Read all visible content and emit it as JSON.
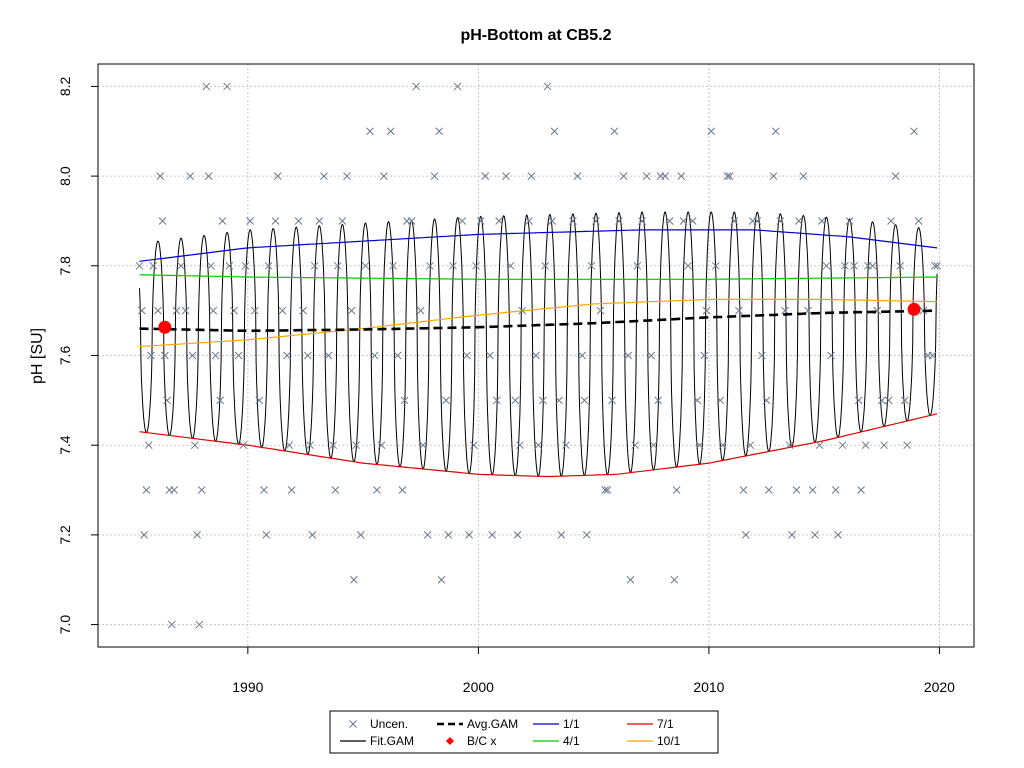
{
  "chart_data": {
    "type": "scatter",
    "title": "pH-Bottom at CB5.2",
    "xlabel": "",
    "ylabel": "pH [SU]",
    "xlim": [
      1983.5,
      2021.5
    ],
    "ylim": [
      6.95,
      8.25
    ],
    "xticks": [
      1990,
      2000,
      2010,
      2020
    ],
    "yticks": [
      7.0,
      7.2,
      7.4,
      7.6,
      7.8,
      8.0,
      8.2
    ],
    "grid": true,
    "legend_position": "bottom",
    "colors": {
      "points": "#6c7a8c",
      "fit_gam": "#000000",
      "avg_gam": "#000000",
      "bc": "#ff0000",
      "jan1": "#0000cd",
      "apr1": "#00c800",
      "jul1": "#e00000",
      "oct1": "#ffa500",
      "grid": "#c8c8c8"
    },
    "legend": [
      {
        "label": "Uncen.",
        "kind": "x",
        "color": "#6c7a8c"
      },
      {
        "label": "Avg.GAM",
        "kind": "dash",
        "color": "#000000"
      },
      {
        "label": "1/1",
        "kind": "line",
        "color": "#0000cd"
      },
      {
        "label": "7/1",
        "kind": "line",
        "color": "#e00000"
      },
      {
        "label": "Fit.GAM",
        "kind": "line",
        "color": "#000000"
      },
      {
        "label": "B/C x",
        "kind": "diamond",
        "color": "#ff0000"
      },
      {
        "label": "4/1",
        "kind": "line",
        "color": "#00c800"
      },
      {
        "label": "10/1",
        "kind": "line",
        "color": "#ffa500"
      }
    ],
    "observations": [
      [
        1985.3,
        7.8
      ],
      [
        1985.4,
        7.7
      ],
      [
        1985.5,
        7.2
      ],
      [
        1985.6,
        7.3
      ],
      [
        1985.7,
        7.4
      ],
      [
        1985.8,
        7.6
      ],
      [
        1985.9,
        7.8
      ],
      [
        1986.1,
        7.7
      ],
      [
        1986.2,
        8.0
      ],
      [
        1986.3,
        7.9
      ],
      [
        1986.4,
        7.6
      ],
      [
        1986.5,
        7.5
      ],
      [
        1986.6,
        7.3
      ],
      [
        1986.7,
        7.0
      ],
      [
        1986.8,
        7.3
      ],
      [
        1986.9,
        7.7
      ],
      [
        1987.1,
        7.8
      ],
      [
        1987.3,
        7.7
      ],
      [
        1987.5,
        8.0
      ],
      [
        1987.6,
        7.6
      ],
      [
        1987.7,
        7.4
      ],
      [
        1987.8,
        7.2
      ],
      [
        1987.9,
        7.0
      ],
      [
        1988.0,
        7.3
      ],
      [
        1988.2,
        8.2
      ],
      [
        1988.3,
        8.0
      ],
      [
        1988.4,
        7.8
      ],
      [
        1988.5,
        7.7
      ],
      [
        1988.6,
        7.6
      ],
      [
        1988.8,
        7.5
      ],
      [
        1988.9,
        7.9
      ],
      [
        1989.1,
        8.2
      ],
      [
        1989.2,
        7.8
      ],
      [
        1989.4,
        7.7
      ],
      [
        1989.6,
        7.6
      ],
      [
        1989.8,
        7.4
      ],
      [
        1989.9,
        7.8
      ],
      [
        1990.1,
        7.9
      ],
      [
        1990.3,
        7.7
      ],
      [
        1990.5,
        7.5
      ],
      [
        1990.7,
        7.3
      ],
      [
        1990.8,
        7.2
      ],
      [
        1990.9,
        7.8
      ],
      [
        1991.2,
        7.9
      ],
      [
        1991.3,
        8.0
      ],
      [
        1991.5,
        7.7
      ],
      [
        1991.7,
        7.6
      ],
      [
        1991.8,
        7.4
      ],
      [
        1991.9,
        7.3
      ],
      [
        1992.2,
        7.9
      ],
      [
        1992.4,
        7.7
      ],
      [
        1992.6,
        7.6
      ],
      [
        1992.7,
        7.4
      ],
      [
        1992.8,
        7.2
      ],
      [
        1992.9,
        7.8
      ],
      [
        1993.1,
        7.9
      ],
      [
        1993.3,
        8.0
      ],
      [
        1993.5,
        7.6
      ],
      [
        1993.7,
        7.4
      ],
      [
        1993.8,
        7.3
      ],
      [
        1993.9,
        7.8
      ],
      [
        1994.1,
        7.9
      ],
      [
        1994.3,
        8.0
      ],
      [
        1994.5,
        7.7
      ],
      [
        1994.6,
        7.1
      ],
      [
        1994.7,
        7.4
      ],
      [
        1994.9,
        7.2
      ],
      [
        1995.1,
        7.8
      ],
      [
        1995.3,
        8.1
      ],
      [
        1995.5,
        7.6
      ],
      [
        1995.6,
        7.3
      ],
      [
        1995.8,
        7.4
      ],
      [
        1995.9,
        8.0
      ],
      [
        1996.2,
        8.1
      ],
      [
        1996.3,
        7.8
      ],
      [
        1996.5,
        7.6
      ],
      [
        1996.7,
        7.3
      ],
      [
        1996.8,
        7.5
      ],
      [
        1996.9,
        7.9
      ],
      [
        1997.1,
        7.9
      ],
      [
        1997.3,
        8.2
      ],
      [
        1997.5,
        7.7
      ],
      [
        1997.6,
        7.4
      ],
      [
        1997.8,
        7.2
      ],
      [
        1997.9,
        7.8
      ],
      [
        1998.1,
        8.0
      ],
      [
        1998.3,
        8.1
      ],
      [
        1998.4,
        7.1
      ],
      [
        1998.6,
        7.5
      ],
      [
        1998.7,
        7.2
      ],
      [
        1998.9,
        7.8
      ],
      [
        1999.1,
        8.2
      ],
      [
        1999.3,
        7.9
      ],
      [
        1999.5,
        7.6
      ],
      [
        1999.6,
        7.2
      ],
      [
        1999.8,
        7.4
      ],
      [
        1999.9,
        7.8
      ],
      [
        2000.1,
        7.9
      ],
      [
        2000.3,
        8.0
      ],
      [
        2000.5,
        7.6
      ],
      [
        2000.6,
        7.2
      ],
      [
        2000.8,
        7.5
      ],
      [
        2000.9,
        7.9
      ],
      [
        2001.2,
        8.0
      ],
      [
        2001.4,
        7.8
      ],
      [
        2001.6,
        7.5
      ],
      [
        2001.7,
        7.2
      ],
      [
        2001.8,
        7.4
      ],
      [
        2001.9,
        7.7
      ],
      [
        2002.2,
        7.9
      ],
      [
        2002.3,
        8.0
      ],
      [
        2002.5,
        7.6
      ],
      [
        2002.6,
        7.4
      ],
      [
        2002.8,
        7.5
      ],
      [
        2002.9,
        7.8
      ],
      [
        2003.0,
        8.2
      ],
      [
        2003.2,
        7.9
      ],
      [
        2003.3,
        8.1
      ],
      [
        2003.5,
        7.5
      ],
      [
        2003.6,
        7.2
      ],
      [
        2003.8,
        7.4
      ],
      [
        2004.1,
        7.9
      ],
      [
        2004.3,
        8.0
      ],
      [
        2004.5,
        7.6
      ],
      [
        2004.6,
        7.5
      ],
      [
        2004.7,
        7.2
      ],
      [
        2004.9,
        7.8
      ],
      [
        2005.1,
        7.9
      ],
      [
        2005.3,
        7.7
      ],
      [
        2005.5,
        7.3
      ],
      [
        2005.6,
        7.3
      ],
      [
        2005.8,
        7.5
      ],
      [
        2005.9,
        8.1
      ],
      [
        2006.1,
        7.9
      ],
      [
        2006.3,
        8.0
      ],
      [
        2006.5,
        7.6
      ],
      [
        2006.6,
        7.1
      ],
      [
        2006.8,
        7.4
      ],
      [
        2006.9,
        7.8
      ],
      [
        2007.1,
        7.9
      ],
      [
        2007.3,
        8.0
      ],
      [
        2007.5,
        7.6
      ],
      [
        2007.6,
        7.4
      ],
      [
        2007.8,
        7.5
      ],
      [
        2007.9,
        8.0
      ],
      [
        2008.1,
        8.0
      ],
      [
        2008.3,
        7.9
      ],
      [
        2008.5,
        7.1
      ],
      [
        2008.6,
        7.3
      ],
      [
        2008.8,
        8.0
      ],
      [
        2008.9,
        7.9
      ],
      [
        2009.1,
        7.8
      ],
      [
        2009.3,
        7.9
      ],
      [
        2009.5,
        7.5
      ],
      [
        2009.6,
        7.4
      ],
      [
        2009.8,
        7.6
      ],
      [
        2009.9,
        7.7
      ],
      [
        2010.1,
        8.1
      ],
      [
        2010.3,
        7.8
      ],
      [
        2010.5,
        7.5
      ],
      [
        2010.6,
        7.4
      ],
      [
        2010.8,
        8.0
      ],
      [
        2010.9,
        8.0
      ],
      [
        2011.1,
        7.9
      ],
      [
        2011.3,
        7.7
      ],
      [
        2011.5,
        7.3
      ],
      [
        2011.6,
        7.2
      ],
      [
        2011.8,
        7.4
      ],
      [
        2011.9,
        7.9
      ],
      [
        2012.1,
        7.9
      ],
      [
        2012.3,
        7.6
      ],
      [
        2012.5,
        7.5
      ],
      [
        2012.6,
        7.3
      ],
      [
        2012.8,
        8.0
      ],
      [
        2012.9,
        8.1
      ],
      [
        2013.1,
        7.9
      ],
      [
        2013.3,
        7.7
      ],
      [
        2013.5,
        7.4
      ],
      [
        2013.6,
        7.2
      ],
      [
        2013.8,
        7.3
      ],
      [
        2013.9,
        7.9
      ],
      [
        2014.1,
        8.0
      ],
      [
        2014.3,
        7.7
      ],
      [
        2014.5,
        7.3
      ],
      [
        2014.6,
        7.2
      ],
      [
        2014.8,
        7.4
      ],
      [
        2014.9,
        7.9
      ],
      [
        2015.1,
        7.8
      ],
      [
        2015.3,
        7.6
      ],
      [
        2015.5,
        7.3
      ],
      [
        2015.6,
        7.2
      ],
      [
        2015.8,
        7.4
      ],
      [
        2015.9,
        7.8
      ],
      [
        2016.1,
        7.9
      ],
      [
        2016.3,
        7.8
      ],
      [
        2016.5,
        7.5
      ],
      [
        2016.6,
        7.3
      ],
      [
        2016.8,
        7.4
      ],
      [
        2016.9,
        7.8
      ],
      [
        2017.1,
        7.8
      ],
      [
        2017.3,
        7.7
      ],
      [
        2017.5,
        7.5
      ],
      [
        2017.6,
        7.4
      ],
      [
        2017.8,
        7.5
      ],
      [
        2017.9,
        7.9
      ],
      [
        2018.1,
        8.0
      ],
      [
        2018.3,
        7.8
      ],
      [
        2018.5,
        7.5
      ],
      [
        2018.6,
        7.4
      ],
      [
        2018.8,
        7.7
      ],
      [
        2018.9,
        8.1
      ],
      [
        2019.1,
        7.9
      ],
      [
        2019.3,
        7.7
      ],
      [
        2019.5,
        7.6
      ],
      [
        2019.7,
        7.6
      ],
      [
        2019.8,
        7.8
      ],
      [
        2019.9,
        7.8
      ]
    ],
    "seasonal_lines": {
      "jan1": {
        "label": "1/1",
        "x": [
          1985.3,
          1990,
          2000,
          2007,
          2012,
          2016,
          2019.9
        ],
        "y": [
          7.81,
          7.84,
          7.87,
          7.88,
          7.88,
          7.865,
          7.84
        ]
      },
      "apr1": {
        "label": "4/1",
        "x": [
          1985.3,
          1990,
          2000,
          2010,
          2019.9
        ],
        "y": [
          7.78,
          7.775,
          7.77,
          7.77,
          7.775
        ]
      },
      "jul1": {
        "label": "7/1",
        "x": [
          1985.3,
          1990,
          1995,
          2000,
          2003,
          2006,
          2010,
          2015,
          2019.9
        ],
        "y": [
          7.43,
          7.4,
          7.36,
          7.335,
          7.33,
          7.335,
          7.36,
          7.41,
          7.47
        ]
      },
      "oct1": {
        "label": "10/1",
        "x": [
          1985.3,
          1990,
          1995,
          2000,
          2005,
          2010,
          2015,
          2019.9
        ],
        "y": [
          7.62,
          7.635,
          7.66,
          7.69,
          7.715,
          7.725,
          7.725,
          7.72
        ]
      }
    },
    "avg_gam": {
      "label": "Avg.GAM",
      "x": [
        1985.3,
        1990,
        1995,
        2000,
        2005,
        2010,
        2015,
        2019.9
      ],
      "y": [
        7.66,
        7.655,
        7.658,
        7.663,
        7.672,
        7.685,
        7.695,
        7.7
      ]
    },
    "bc_points": [
      [
        1986.4,
        7.663
      ],
      [
        2018.9,
        7.703
      ]
    ]
  }
}
